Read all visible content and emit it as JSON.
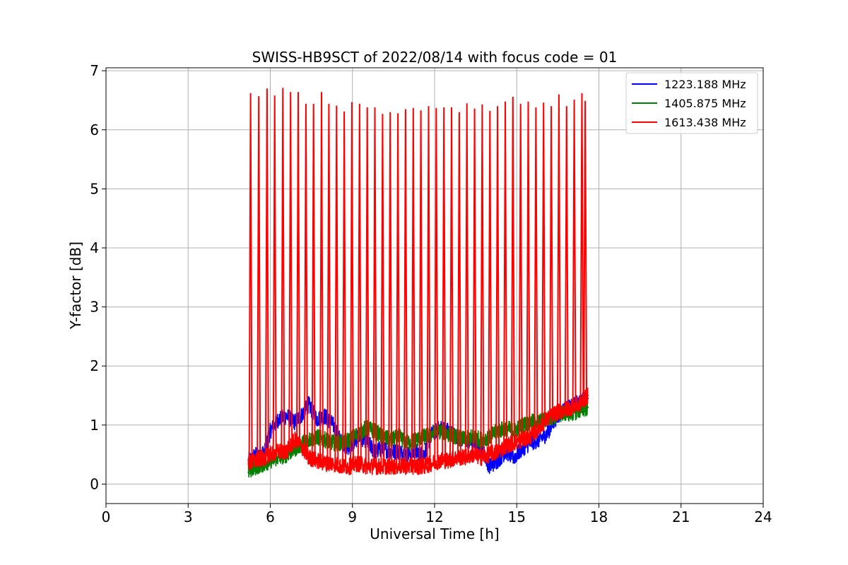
{
  "chart_data": {
    "type": "line",
    "title": "SWISS-HB9SCT of 2022/08/14 with focus code = 01",
    "xlabel": "Universal Time [h]",
    "ylabel": "Y-factor [dB]",
    "xlim": [
      0,
      24
    ],
    "ylim": [
      -0.33,
      7.05
    ],
    "xticks": [
      0,
      3,
      6,
      9,
      12,
      15,
      18,
      21,
      24
    ],
    "yticks": [
      0,
      1,
      2,
      3,
      4,
      5,
      6,
      7
    ],
    "grid": true,
    "legend_position": "top-right",
    "series": [
      {
        "name": "1223.188 MHz",
        "color": "#0000ff",
        "x": [
          5.2,
          5.5,
          5.8,
          6.0,
          6.3,
          6.6,
          6.9,
          7.2,
          7.4,
          7.7,
          8.0,
          8.3,
          8.6,
          8.9,
          9.2,
          9.5,
          9.8,
          10.1,
          10.4,
          10.7,
          11.0,
          11.3,
          11.6,
          11.9,
          12.2,
          12.5,
          12.8,
          13.1,
          13.4,
          13.7,
          14.0,
          14.3,
          14.6,
          14.9,
          15.2,
          15.5,
          15.8,
          16.1,
          16.4,
          16.7,
          17.0,
          17.3,
          17.6
        ],
        "y": [
          0.4,
          0.5,
          0.55,
          0.9,
          1.1,
          1.15,
          1.05,
          1.2,
          1.35,
          1.1,
          1.15,
          1.0,
          0.7,
          0.6,
          0.8,
          0.75,
          0.55,
          0.6,
          0.55,
          0.55,
          0.5,
          0.55,
          0.5,
          0.85,
          0.95,
          0.9,
          0.8,
          0.75,
          0.7,
          0.65,
          0.3,
          0.4,
          0.55,
          0.45,
          0.6,
          0.7,
          0.75,
          0.85,
          1.1,
          1.25,
          1.3,
          1.4,
          1.45
        ]
      },
      {
        "name": "1405.875 MHz",
        "color": "#008000",
        "x": [
          5.2,
          5.5,
          5.8,
          6.0,
          6.3,
          6.6,
          6.9,
          7.2,
          7.4,
          7.7,
          8.0,
          8.3,
          8.6,
          8.9,
          9.2,
          9.5,
          9.8,
          10.1,
          10.4,
          10.7,
          11.0,
          11.3,
          11.6,
          11.9,
          12.2,
          12.5,
          12.8,
          13.1,
          13.4,
          13.7,
          14.0,
          14.3,
          14.6,
          14.9,
          15.2,
          15.5,
          15.8,
          16.1,
          16.4,
          16.7,
          17.0,
          17.3,
          17.6
        ],
        "y": [
          0.2,
          0.3,
          0.35,
          0.4,
          0.45,
          0.5,
          0.6,
          0.7,
          0.75,
          0.8,
          0.75,
          0.7,
          0.7,
          0.75,
          0.85,
          0.95,
          0.9,
          0.8,
          0.75,
          0.8,
          0.7,
          0.75,
          0.8,
          0.85,
          0.9,
          0.85,
          0.8,
          0.75,
          0.8,
          0.75,
          0.8,
          0.9,
          0.95,
          0.9,
          1.0,
          1.05,
          1.05,
          1.1,
          1.15,
          1.2,
          1.2,
          1.25,
          1.3
        ]
      },
      {
        "name": "1613.438 MHz",
        "color": "#ff0000",
        "x": [
          5.2,
          5.5,
          5.8,
          6.0,
          6.3,
          6.6,
          6.9,
          7.2,
          7.4,
          7.7,
          8.0,
          8.3,
          8.6,
          8.9,
          9.2,
          9.5,
          9.8,
          10.1,
          10.4,
          10.7,
          11.0,
          11.3,
          11.6,
          11.9,
          12.2,
          12.5,
          12.8,
          13.1,
          13.4,
          13.7,
          14.0,
          14.3,
          14.6,
          14.9,
          15.2,
          15.5,
          15.8,
          16.1,
          16.4,
          16.7,
          17.0,
          17.3,
          17.6
        ],
        "y": [
          0.35,
          0.4,
          0.45,
          0.5,
          0.55,
          0.55,
          0.75,
          0.6,
          0.45,
          0.4,
          0.35,
          0.35,
          0.3,
          0.3,
          0.35,
          0.3,
          0.3,
          0.3,
          0.3,
          0.3,
          0.3,
          0.3,
          0.3,
          0.35,
          0.4,
          0.4,
          0.45,
          0.45,
          0.5,
          0.45,
          0.5,
          0.55,
          0.65,
          0.7,
          0.75,
          0.8,
          0.95,
          1.1,
          1.2,
          1.25,
          1.3,
          1.35,
          1.5
        ]
      }
    ],
    "spikes": {
      "series": "1613.438 MHz",
      "x": [
        5.28,
        5.58,
        5.88,
        6.16,
        6.46,
        6.74,
        7.02,
        7.3,
        7.58,
        7.87,
        8.14,
        8.42,
        8.7,
        8.98,
        9.26,
        9.54,
        9.82,
        10.1,
        10.38,
        10.66,
        10.94,
        11.22,
        11.5,
        11.78,
        12.06,
        12.34,
        12.62,
        12.9,
        13.18,
        13.46,
        13.74,
        14.02,
        14.3,
        14.58,
        14.86,
        15.14,
        15.42,
        15.7,
        15.98,
        16.26,
        16.54,
        16.82,
        17.1,
        17.38,
        17.5
      ],
      "peak_y": [
        6.62,
        6.57,
        6.7,
        6.58,
        6.71,
        6.64,
        6.64,
        6.44,
        6.44,
        6.64,
        6.44,
        6.41,
        6.31,
        6.47,
        6.44,
        6.38,
        6.38,
        6.27,
        6.3,
        6.28,
        6.35,
        6.37,
        6.33,
        6.4,
        6.37,
        6.38,
        6.38,
        6.3,
        6.45,
        6.36,
        6.43,
        6.32,
        6.4,
        6.48,
        6.56,
        6.44,
        6.48,
        6.38,
        6.46,
        6.4,
        6.6,
        6.4,
        6.51,
        6.62,
        6.49
      ]
    }
  }
}
